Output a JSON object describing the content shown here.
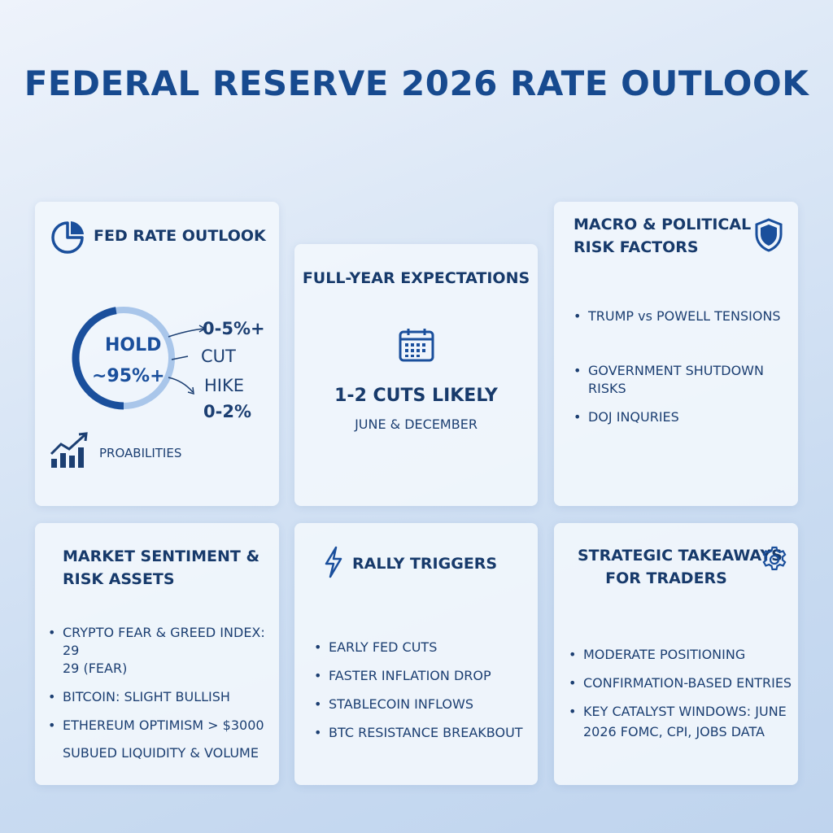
{
  "title": "FEDERAL RESERVE 2026 RATE OUTLOOK",
  "colors": {
    "accent": "#1a4f9c",
    "accent_light": "#a9c6ea",
    "text": "#173a6b"
  },
  "fed_rate_outlook": {
    "header": "FED RATE OUTLOOK",
    "icon": "pie-chart-icon",
    "gauge": {
      "hold_label": "HOLD",
      "hold_value": "~95%+",
      "hold_fraction": 0.95
    },
    "cut": {
      "value": "0-5%+",
      "label": "CUT"
    },
    "hike": {
      "label": "HIKE",
      "value": "0-2%"
    },
    "footer_icon": "growth-chart-icon",
    "footer": "PROABILITIES"
  },
  "full_year": {
    "header": "FULL-YEAR EXPECTATIONS",
    "icon": "calendar-icon",
    "headline": "1-2 CUTS LIKELY",
    "subline": "JUNE & DECEMBER"
  },
  "macro_risk": {
    "header_line1": "MACRO & POLITICAL",
    "header_line2": "RISK FACTORS",
    "icon": "shield-icon",
    "items": [
      "TRUMP vs POWELL TENSIONS",
      "GOVERNMENT SHUTDOWN RISKS",
      "DOJ INQURIES"
    ]
  },
  "market_sentiment": {
    "header_line1": "MARKET SENTIMENT &",
    "header_line2": "RISK ASSETS",
    "items": [
      {
        "line1": "CRYPTO FEAR & GREED INDEX: 29",
        "line2": "29 (FEAR)"
      },
      {
        "line1": "BITCOIN: SLIGHT BULLISH"
      },
      {
        "line1": "ETHEREUM OPTIMISM > $3000",
        "line2": "SUBUED LIQUIDITY & VOLUME"
      }
    ]
  },
  "rally_triggers": {
    "header": "RALLY TRIGGERS",
    "icon": "lightning-icon",
    "items": [
      "EARLY FED CUTS",
      "FASTER INFLATION DROP",
      "STABLECOIN INFLOWS",
      "BTC RESISTANCE BREAKBOUT"
    ]
  },
  "strategic": {
    "header_line1": "STRATEGIC TAKEAWAYS",
    "header_line2": "FOR TRADERS",
    "icon": "gear-icon",
    "items": [
      {
        "line1": "MODERATE POSITIONING"
      },
      {
        "line1": "CONFIRMATION-BASED ENTRIES"
      },
      {
        "line1": "KEY CATALYST WINDOWS: JUNE",
        "line2": "2026 FOMC, CPI, JOBS DATA"
      }
    ]
  }
}
